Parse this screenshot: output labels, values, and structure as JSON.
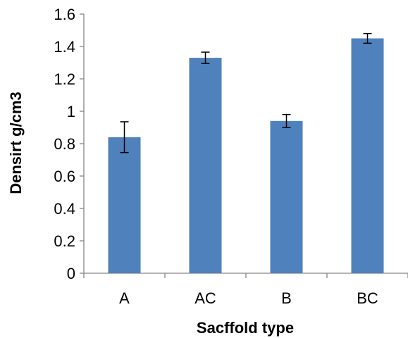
{
  "chart_data": {
    "type": "bar",
    "title": "",
    "xlabel": "Sacffold type",
    "ylabel": "Densirt g/cm3",
    "categories": [
      "A",
      "AC",
      "B",
      "BC"
    ],
    "values": [
      0.84,
      1.33,
      0.94,
      1.45
    ],
    "error": [
      0.095,
      0.035,
      0.04,
      0.03
    ],
    "ylim": [
      0,
      1.6
    ],
    "yticks": [
      0,
      0.2,
      0.4,
      0.6,
      0.8,
      1,
      1.2,
      1.4,
      1.6
    ],
    "ytick_labels": [
      "0",
      "0.2",
      "0.4",
      "0.6",
      "0.8",
      "1",
      "1.2",
      "1.4",
      "1.6"
    ],
    "grid": false,
    "legend": "none",
    "bar_color": "#4f81bd",
    "error_bar_color": "#000000"
  }
}
